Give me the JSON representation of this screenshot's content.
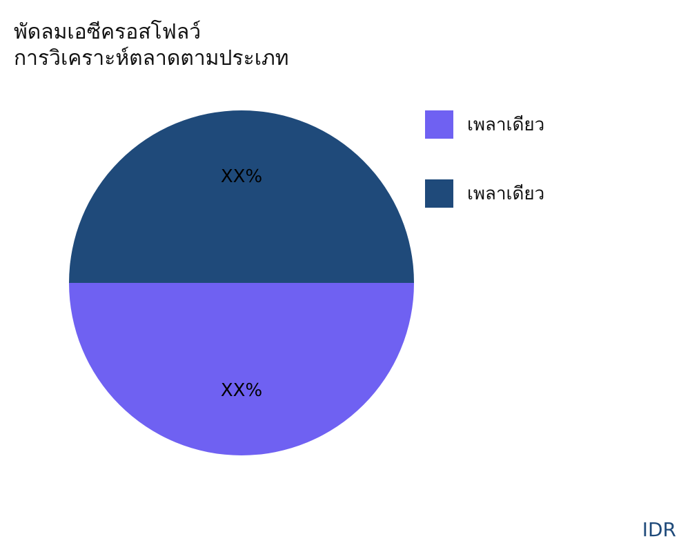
{
  "chart_data": {
    "type": "pie",
    "title": "พัดลมเอซีครอสโฟลว์",
    "subtitle": "การวิเคราะห์ตลาดตามประเภท",
    "slices": [
      {
        "name": "เพลาเดียว",
        "value": 50,
        "label": "XX%",
        "color": "#6f61f2"
      },
      {
        "name": "เพลาเดียว",
        "value": 50,
        "label": "XX%",
        "color": "#1f4a7a"
      }
    ],
    "legend_position": "right"
  },
  "brand": "IDR"
}
